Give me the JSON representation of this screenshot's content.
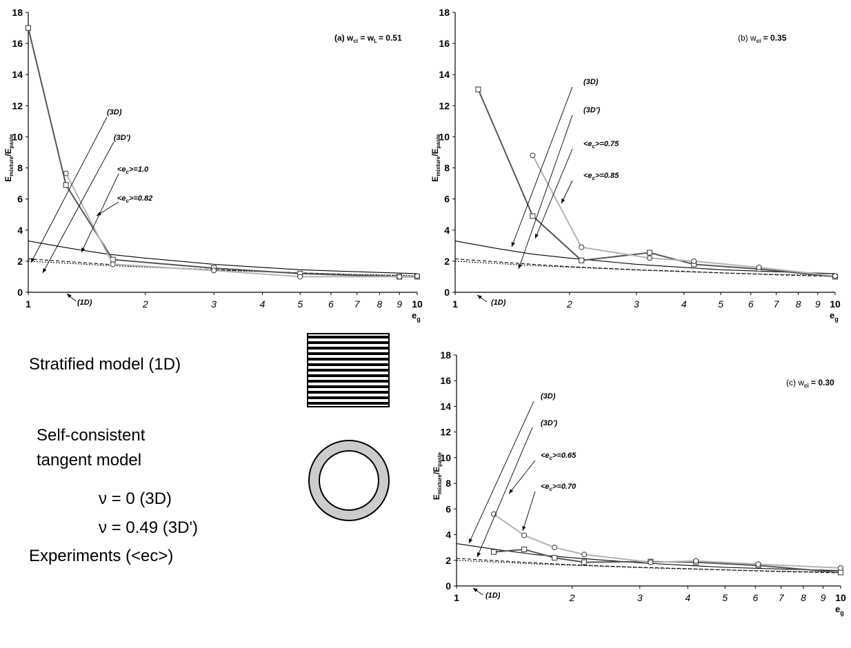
{
  "chart_data": [
    {
      "id": "a",
      "type": "line",
      "title": "(a) w",
      "title_sub": "ci",
      "title_rest": " = w",
      "title_sub2": "L",
      "title_tail": "= 0.51",
      "xscale": "log",
      "xlim": [
        1,
        10
      ],
      "ylim": [
        0,
        18
      ],
      "yticks": [
        "0",
        "2",
        "4",
        "6",
        "8",
        "10",
        "12",
        "14",
        "16",
        "18"
      ],
      "xticks": [
        "1",
        "2",
        "3",
        "4",
        "5",
        "6",
        "7",
        "8",
        "9",
        "10"
      ],
      "ylabel": "E",
      "ylabel_sub": "mixture",
      "ylabel_mid": "/E",
      "ylabel_sub2": "paste",
      "xlabel": "e",
      "xlabel_sub": "g",
      "annotations": [
        "(3D)",
        "(3D')",
        "<e",
        "c",
        ">=1.0",
        "<e",
        "c",
        ">=0.82",
        "(1D)"
      ],
      "series": [
        {
          "marker": "square",
          "color": "#555555",
          "x": [
            1.0,
            1.25,
            1.65,
            3.0,
            5.0,
            9.0,
            10.0
          ],
          "y": [
            17.0,
            6.9,
            2.1,
            1.55,
            1.2,
            1.0,
            1.0
          ]
        },
        {
          "marker": "circle",
          "color": "#b3b3b3",
          "x": [
            1.25,
            1.65,
            3.0,
            5.0,
            9.0,
            10.0
          ],
          "y": [
            7.65,
            1.8,
            1.4,
            1.0,
            1.0,
            1.05
          ]
        },
        {
          "model": "3D",
          "color": "#000000",
          "x": [
            1,
            1.3,
            1.6,
            2,
            3,
            4,
            5,
            7,
            10
          ],
          "y": [
            3.3,
            2.8,
            2.45,
            2.2,
            1.8,
            1.6,
            1.45,
            1.32,
            1.2
          ]
        },
        {
          "model": "3D'",
          "color": "#000000",
          "x": [
            1,
            1.3,
            1.6,
            2,
            3,
            4,
            5,
            7,
            10
          ],
          "y": [
            2.15,
            1.95,
            1.8,
            1.65,
            1.45,
            1.35,
            1.25,
            1.12,
            1.02
          ]
        },
        {
          "model": "1D",
          "color": "#000000",
          "x": [
            1,
            1.3,
            1.6,
            2,
            3,
            4,
            5,
            7,
            10
          ],
          "y": [
            2.0,
            1.85,
            1.72,
            1.62,
            1.43,
            1.32,
            1.25,
            1.15,
            1.08
          ]
        }
      ]
    },
    {
      "id": "b",
      "type": "line",
      "title": "(b) w",
      "title_sub": "ci",
      "title_tail": " = 0.35",
      "xscale": "log",
      "xlim": [
        1,
        10
      ],
      "ylim": [
        0,
        18
      ],
      "yticks": [
        "0",
        "2",
        "4",
        "6",
        "8",
        "10",
        "12",
        "14",
        "16",
        "18"
      ],
      "xticks": [
        "1",
        "2",
        "3",
        "4",
        "5",
        "6",
        "7",
        "8",
        "9",
        "10"
      ],
      "ylabel": "E",
      "ylabel_sub": "mixture",
      "ylabel_mid": "/E",
      "ylabel_sub2": "paste",
      "xlabel": "e",
      "xlabel_sub": "g",
      "annotations": [
        "(3D)",
        "(3D')",
        "<e",
        "c",
        ">=0.75",
        "<e",
        "c",
        ">=0.85",
        "(1D)"
      ],
      "series": [
        {
          "marker": "square",
          "color": "#555555",
          "x": [
            1.15,
            1.6,
            2.15,
            3.25,
            4.25,
            6.3,
            10.0
          ],
          "y": [
            13.05,
            4.9,
            2.05,
            2.55,
            1.8,
            1.5,
            1.0
          ]
        },
        {
          "marker": "circle",
          "color": "#b3b3b3",
          "x": [
            1.6,
            2.15,
            3.25,
            4.25,
            6.3,
            10.0
          ],
          "y": [
            8.8,
            2.9,
            2.2,
            2.0,
            1.6,
            1.05
          ]
        },
        {
          "model": "3D",
          "color": "#000000",
          "x": [
            1,
            1.3,
            1.6,
            2,
            3,
            4,
            5,
            7,
            10
          ],
          "y": [
            3.3,
            2.8,
            2.45,
            2.2,
            1.8,
            1.6,
            1.45,
            1.32,
            1.2
          ]
        },
        {
          "model": "3D'",
          "color": "#000000",
          "x": [
            1,
            1.3,
            1.6,
            2,
            3,
            4,
            5,
            7,
            10
          ],
          "y": [
            2.15,
            1.95,
            1.8,
            1.65,
            1.45,
            1.35,
            1.25,
            1.12,
            1.02
          ]
        },
        {
          "model": "1D",
          "color": "#000000",
          "x": [
            1,
            1.3,
            1.6,
            2,
            3,
            4,
            5,
            7,
            10
          ],
          "y": [
            2.0,
            1.85,
            1.72,
            1.62,
            1.43,
            1.32,
            1.25,
            1.15,
            1.08
          ]
        }
      ]
    },
    {
      "id": "c",
      "type": "line",
      "title": "(c) w",
      "title_sub": "ci",
      "title_tail": " = 0.30",
      "xscale": "log",
      "xlim": [
        1,
        10
      ],
      "ylim": [
        0,
        18
      ],
      "yticks": [
        "0",
        "2",
        "4",
        "6",
        "8",
        "10",
        "12",
        "14",
        "16",
        "18"
      ],
      "xticks": [
        "1",
        "2",
        "3",
        "4",
        "5",
        "6",
        "7",
        "8",
        "9",
        "10"
      ],
      "ylabel": "E",
      "ylabel_sub": "mixture",
      "ylabel_mid": "/E",
      "ylabel_sub2": "paste",
      "xlabel": "e",
      "xlabel_sub": "g",
      "annotations": [
        "(3D)",
        "(3D')",
        "<e",
        "c",
        ">=0.65",
        "<e",
        "c",
        ">=0.70",
        "(1D)"
      ],
      "series": [
        {
          "marker": "square",
          "color": "#555555",
          "x": [
            1.25,
            1.5,
            1.8,
            2.15,
            3.2,
            4.2,
            6.1,
            10.0
          ],
          "y": [
            2.65,
            2.85,
            2.2,
            1.85,
            1.9,
            1.85,
            1.6,
            1.05
          ]
        },
        {
          "marker": "circle",
          "color": "#b3b3b3",
          "x": [
            1.25,
            1.5,
            1.8,
            2.15,
            3.2,
            4.2,
            6.1,
            10.0
          ],
          "y": [
            5.6,
            3.95,
            3.0,
            2.45,
            1.85,
            1.95,
            1.7,
            1.4
          ]
        },
        {
          "model": "3D",
          "color": "#000000",
          "x": [
            1,
            1.3,
            1.6,
            2,
            3,
            4,
            5,
            7,
            10
          ],
          "y": [
            3.3,
            2.8,
            2.45,
            2.2,
            1.8,
            1.6,
            1.45,
            1.32,
            1.2
          ]
        },
        {
          "model": "3D'",
          "color": "#000000",
          "x": [
            1,
            1.3,
            1.6,
            2,
            3,
            4,
            5,
            7,
            10
          ],
          "y": [
            2.15,
            1.95,
            1.8,
            1.65,
            1.45,
            1.35,
            1.25,
            1.12,
            1.02
          ]
        },
        {
          "model": "1D",
          "color": "#000000",
          "x": [
            1,
            1.3,
            1.6,
            2,
            3,
            4,
            5,
            7,
            10
          ],
          "y": [
            2.0,
            1.85,
            1.72,
            1.62,
            1.43,
            1.32,
            1.25,
            1.15,
            1.08
          ]
        }
      ]
    }
  ],
  "legend": {
    "stratified": "Stratified model (1D)",
    "self_consistent_1": "Self-consistent",
    "self_consistent_2": "tangent model",
    "nu0": "ν = 0 (3D)",
    "nu049": "ν = 0.49 (3D')",
    "experiments": "Experiments (<ec>)"
  }
}
